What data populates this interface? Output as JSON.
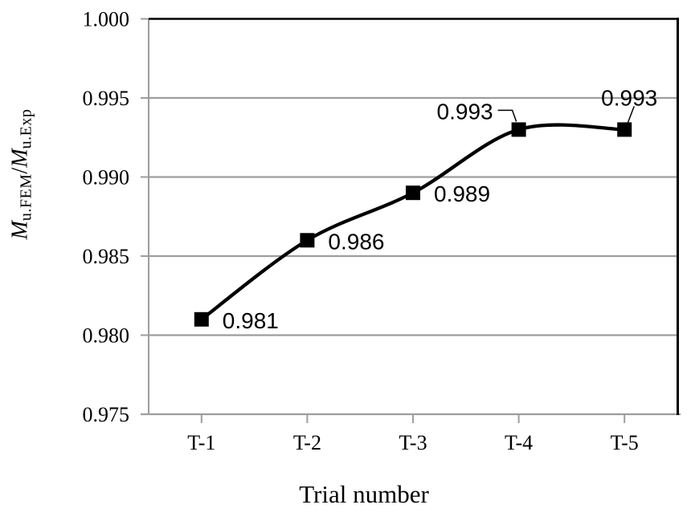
{
  "chart_data": {
    "type": "line",
    "title": "",
    "xlabel": "Trial number",
    "ylabel": "M u.FEM / M u.Exp",
    "ylabel_parts": [
      {
        "text": "M",
        "style": "italic"
      },
      {
        "text": "u.FEM",
        "style": "sub"
      },
      {
        "text": "/",
        "style": "plain"
      },
      {
        "text": "M",
        "style": "italic"
      },
      {
        "text": "u.Exp",
        "style": "sub"
      }
    ],
    "categories": [
      "T-1",
      "T-2",
      "T-3",
      "T-4",
      "T-5"
    ],
    "series": [
      {
        "name": "Mu.FEM/Mu.Exp",
        "values": [
          0.981,
          0.986,
          0.989,
          0.993,
          0.993
        ]
      }
    ],
    "data_labels": [
      "0.981",
      "0.986",
      "0.989",
      "0.993",
      "0.993"
    ],
    "label_positions": [
      "right",
      "right",
      "right",
      "callout-left",
      "callout-right"
    ],
    "ylim": [
      0.975,
      1.0
    ],
    "yticks": [
      1.0,
      0.995,
      0.99,
      0.985,
      0.98,
      0.975
    ],
    "ytick_labels": [
      "1.000",
      "0.995",
      "0.990",
      "0.985",
      "0.980",
      "0.975"
    ],
    "grid": "horizontal-only",
    "legend": "none",
    "smooth": true,
    "marker": "square",
    "colors": {
      "line": "#000000",
      "marker": "#000000",
      "gridline": "#9d9d9d",
      "axis": "#9d9d9d",
      "border": "#000000",
      "text": "#000000",
      "background": "#ffffff"
    }
  }
}
